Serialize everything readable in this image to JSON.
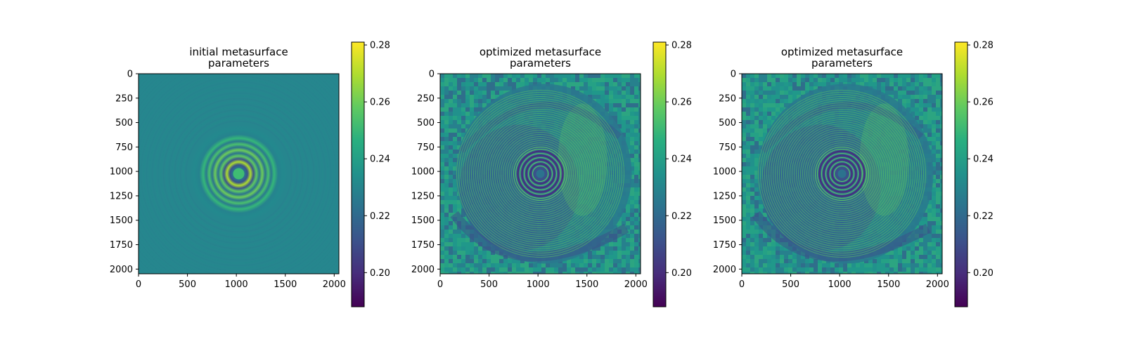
{
  "chart_data": [
    {
      "type": "heatmap",
      "title_lines": [
        "initial metasurface",
        "parameters"
      ],
      "x_ticks": [
        0,
        500,
        1000,
        1500,
        2000
      ],
      "y_ticks": [
        0,
        250,
        500,
        750,
        1000,
        1250,
        1500,
        1750,
        2000
      ],
      "xlim": [
        0,
        2048
      ],
      "ylim": [
        2048,
        0
      ],
      "colormap": "viridis",
      "colorbar": {
        "range": [
          0.188,
          0.281
        ],
        "ticks": [
          0.2,
          0.22,
          0.24,
          0.26,
          0.28
        ],
        "tick_labels": [
          "0.20",
          "0.22",
          "0.24",
          "0.26",
          "0.28"
        ]
      },
      "pattern": "initial"
    },
    {
      "type": "heatmap",
      "title_lines": [
        "optimized metasurface",
        "parameters"
      ],
      "x_ticks": [
        0,
        500,
        1000,
        1500,
        2000
      ],
      "y_ticks": [
        0,
        250,
        500,
        750,
        1000,
        1250,
        1500,
        1750,
        2000
      ],
      "xlim": [
        0,
        2048
      ],
      "ylim": [
        2048,
        0
      ],
      "colormap": "viridis",
      "colorbar": {
        "range": [
          0.188,
          0.281
        ],
        "ticks": [
          0.2,
          0.22,
          0.24,
          0.26,
          0.28
        ],
        "tick_labels": [
          "0.20",
          "0.22",
          "0.24",
          "0.26",
          "0.28"
        ]
      },
      "pattern": "optimized"
    },
    {
      "type": "heatmap",
      "title_lines": [
        "optimized metasurface",
        "parameters"
      ],
      "x_ticks": [
        0,
        500,
        1000,
        1500,
        2000
      ],
      "y_ticks": [
        0,
        250,
        500,
        750,
        1000,
        1250,
        1500,
        1750,
        2000
      ],
      "xlim": [
        0,
        2048
      ],
      "ylim": [
        2048,
        0
      ],
      "colormap": "viridis",
      "colorbar": {
        "range": [
          0.188,
          0.281
        ],
        "ticks": [
          0.2,
          0.22,
          0.24,
          0.26,
          0.28
        ],
        "tick_labels": [
          "0.20",
          "0.22",
          "0.24",
          "0.26",
          "0.28"
        ]
      },
      "pattern": "optimized"
    }
  ]
}
